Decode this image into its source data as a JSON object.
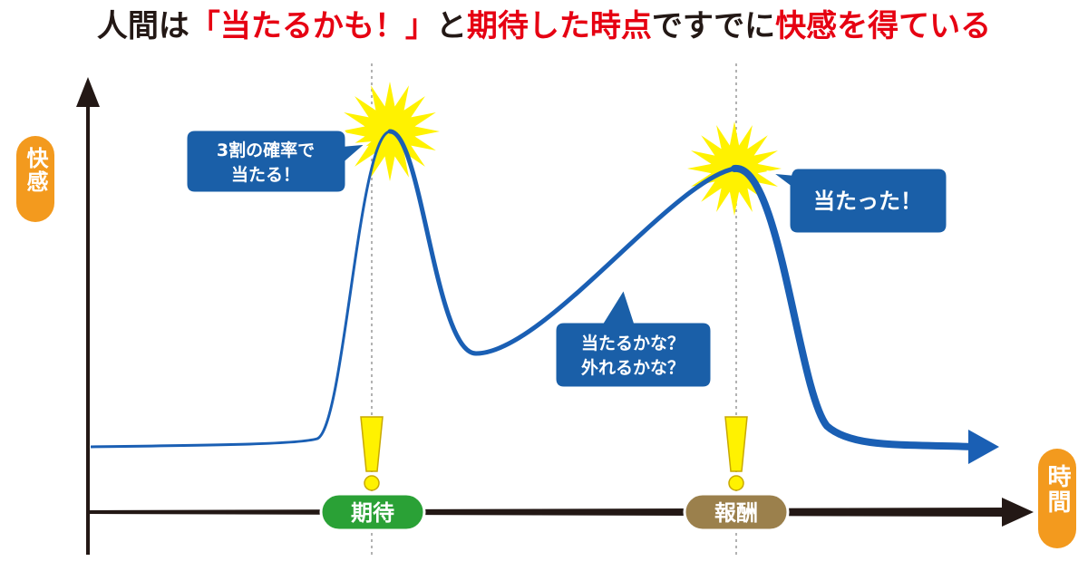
{
  "title": {
    "segments": [
      {
        "text": "人間は",
        "emphasis": false
      },
      {
        "text": "「当たるかも！」",
        "emphasis": true
      },
      {
        "text": "と",
        "emphasis": false
      },
      {
        "text": "期待した時点",
        "emphasis": true
      },
      {
        "text": "ですでに",
        "emphasis": false
      },
      {
        "text": "快感を得ている",
        "emphasis": true
      }
    ]
  },
  "axes": {
    "y_label": "快感",
    "x_label": "時間"
  },
  "callouts": [
    {
      "lines": [
        "3割の確率で",
        "当たる！"
      ]
    },
    {
      "lines": [
        "当たった！"
      ]
    },
    {
      "lines": [
        "当たるかな？",
        "外れるかな？"
      ]
    }
  ],
  "markers": [
    {
      "label": "期待"
    },
    {
      "label": "報酬"
    }
  ]
}
